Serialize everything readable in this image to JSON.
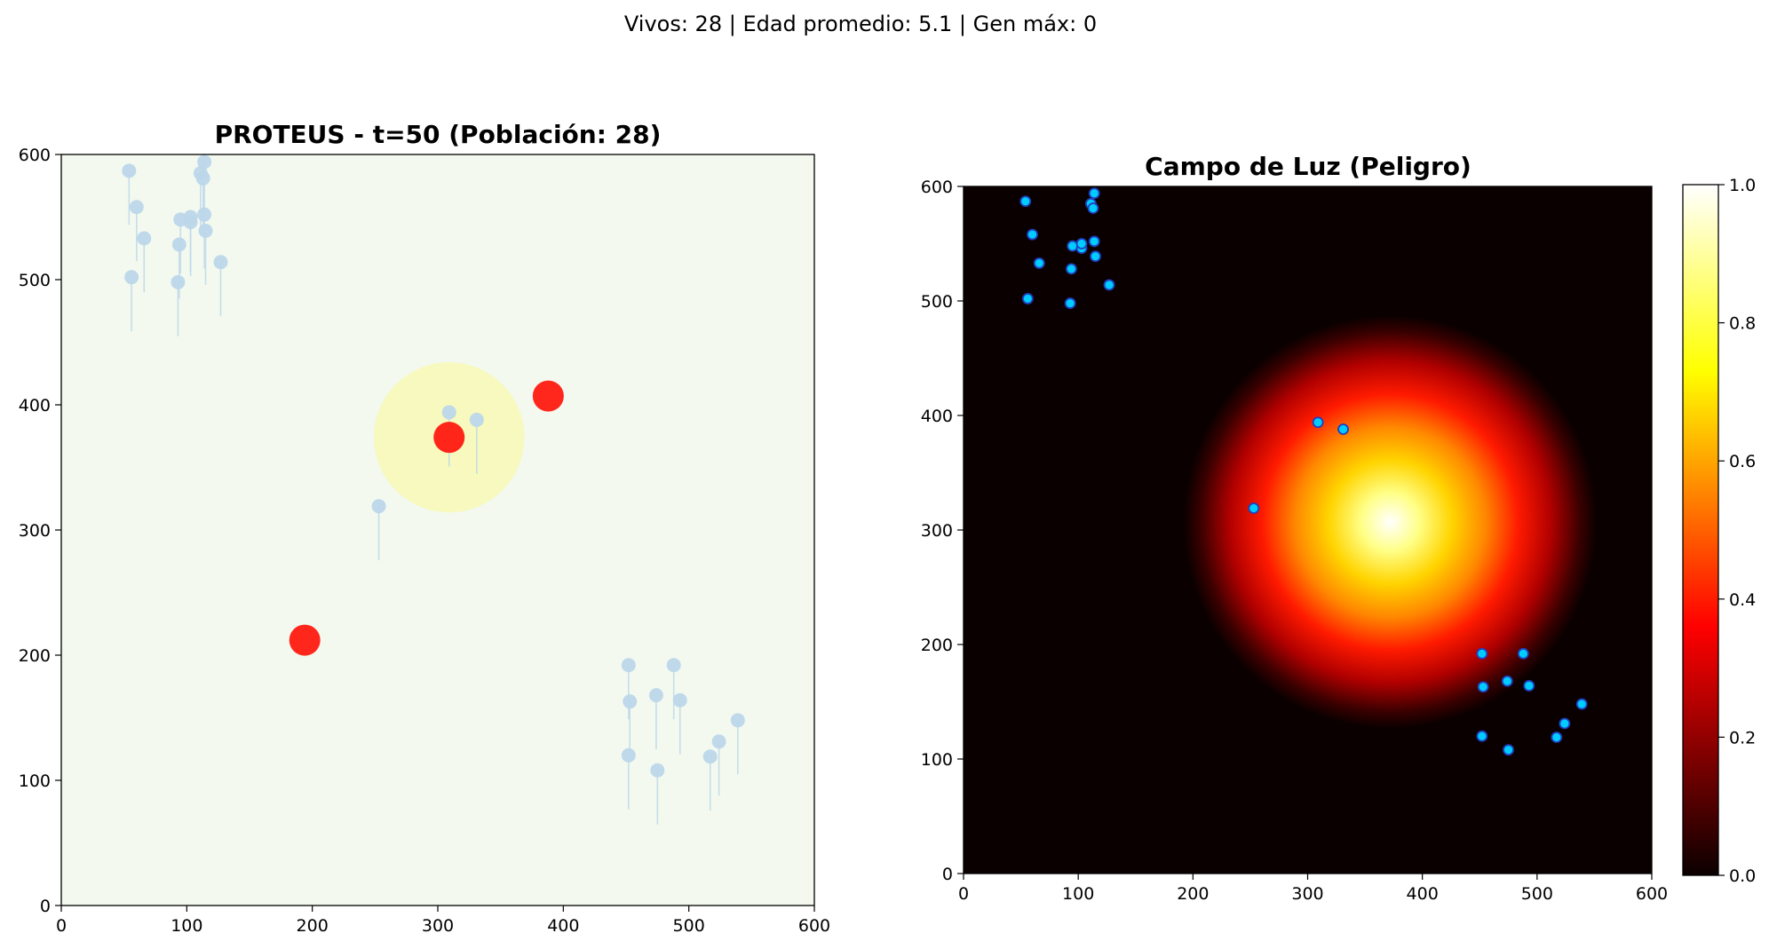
{
  "suptitle": "Vivos: 28 | Edad promedio: 5.1 | Gen máx: 0",
  "colors": {
    "background_left": "#f3f9ef",
    "agent_left": "#bcd7ea",
    "predator": "#ff1a10",
    "danger_zone": "#f7f8b8",
    "agent_right_fill": "#00ccff",
    "agent_right_edge": "#1f3fbf"
  },
  "chart_data": [
    {
      "type": "scatter",
      "title": "PROTEUS - t=50 (Población: 28)",
      "xlabel": "",
      "ylabel": "",
      "xlim": [
        0,
        600
      ],
      "ylim": [
        0,
        600
      ],
      "xticks": [
        "0",
        "100",
        "200",
        "300",
        "400",
        "500",
        "600"
      ],
      "yticks": [
        "0",
        "100",
        "200",
        "300",
        "400",
        "500",
        "600"
      ],
      "grid": false,
      "series": [
        {
          "kind": "agents",
          "points": [
            [
              54,
              587
            ],
            [
              60,
              558
            ],
            [
              66,
              533
            ],
            [
              56,
              502
            ],
            [
              94,
              528
            ],
            [
              93,
              498
            ],
            [
              95,
              548
            ],
            [
              103,
              546
            ],
            [
              103,
              550
            ],
            [
              114,
              552
            ],
            [
              115,
              539
            ],
            [
              114,
              594
            ],
            [
              111,
              585
            ],
            [
              113,
              581
            ],
            [
              127,
              514
            ],
            [
              309,
              394
            ],
            [
              331,
              388
            ],
            [
              253,
              319
            ],
            [
              452,
              192
            ],
            [
              453,
              163
            ],
            [
              452,
              120
            ],
            [
              474,
              168
            ],
            [
              475,
              108
            ],
            [
              488,
              192
            ],
            [
              493,
              164
            ],
            [
              517,
              119
            ],
            [
              524,
              131
            ],
            [
              539,
              148
            ]
          ]
        },
        {
          "kind": "predators",
          "points": [
            [
              309,
              374
            ],
            [
              388,
              407
            ],
            [
              194,
              212
            ]
          ]
        },
        {
          "kind": "danger_zone",
          "center": [
            309,
            374
          ],
          "radius": 60
        }
      ]
    },
    {
      "type": "heatmap",
      "title": "Campo de Luz (Peligro)",
      "xlabel": "",
      "ylabel": "",
      "xlim": [
        0,
        600
      ],
      "ylim": [
        0,
        600
      ],
      "xticks": [
        "0",
        "100",
        "200",
        "300",
        "400",
        "500",
        "600"
      ],
      "yticks": [
        "0",
        "100",
        "200",
        "300",
        "400",
        "500",
        "600"
      ],
      "light_center": [
        372,
        307
      ],
      "light_sigma": 60,
      "colorbar": {
        "min": 0,
        "max": 1,
        "ticks": [
          "0.0",
          "0.2",
          "0.4",
          "0.6",
          "0.8",
          "1.0"
        ],
        "colormap": "hot"
      },
      "points": [
        [
          54,
          587
        ],
        [
          60,
          558
        ],
        [
          66,
          533
        ],
        [
          56,
          502
        ],
        [
          94,
          528
        ],
        [
          93,
          498
        ],
        [
          95,
          548
        ],
        [
          103,
          546
        ],
        [
          103,
          550
        ],
        [
          114,
          552
        ],
        [
          115,
          539
        ],
        [
          114,
          594
        ],
        [
          111,
          585
        ],
        [
          113,
          581
        ],
        [
          127,
          514
        ],
        [
          309,
          394
        ],
        [
          331,
          388
        ],
        [
          253,
          319
        ],
        [
          452,
          192
        ],
        [
          453,
          163
        ],
        [
          452,
          120
        ],
        [
          474,
          168
        ],
        [
          475,
          108
        ],
        [
          488,
          192
        ],
        [
          493,
          164
        ],
        [
          517,
          119
        ],
        [
          524,
          131
        ],
        [
          539,
          148
        ]
      ]
    }
  ]
}
